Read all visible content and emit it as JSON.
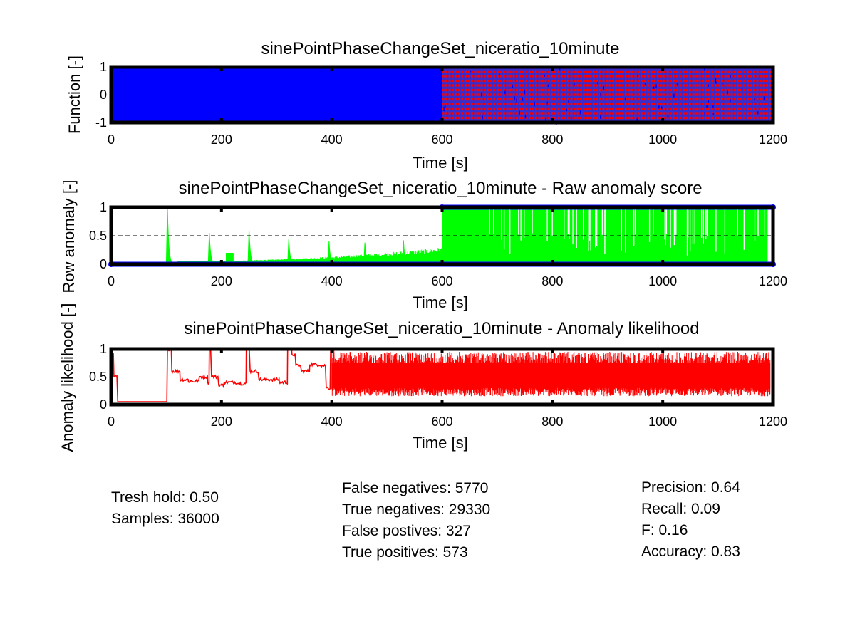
{
  "chart_data": [
    {
      "type": "scatter",
      "title": "sinePointPhaseChangeSet_niceratio_10minute",
      "xlabel": "Time [s]",
      "ylabel": "Function [-]",
      "xlim": [
        0,
        1200
      ],
      "ylim": [
        -1,
        1
      ],
      "xticks": [
        "0",
        "200",
        "400",
        "600",
        "800",
        "1000",
        "1200"
      ],
      "yticks": [
        "-1",
        "0",
        "1"
      ],
      "series": [
        {
          "segment": [
            0,
            600
          ],
          "color": "#0000ff",
          "marker": "dense sine samples, amplitude 1"
        },
        {
          "segment": [
            600,
            1200
          ],
          "color": "#ff0000",
          "marker": "dense point samples with phase change, amplitude 1"
        }
      ]
    },
    {
      "type": "line",
      "title": "sinePointPhaseChangeSet_niceratio_10minute - Raw anomaly score",
      "xlabel": "Time [s]",
      "ylabel": "Row anomaly [-]",
      "xlim": [
        0,
        1200
      ],
      "ylim": [
        0,
        1
      ],
      "xticks": [
        "0",
        "200",
        "400",
        "600",
        "800",
        "1000",
        "1200"
      ],
      "yticks": [
        "0",
        "0.5",
        "1"
      ],
      "threshold": 0.5,
      "line_color": "#00ff00",
      "spikes": [
        {
          "x": 102,
          "y": 1.0
        },
        {
          "x": 178,
          "y": 0.55
        },
        {
          "x": 250,
          "y": 0.6
        },
        {
          "x": 322,
          "y": 0.45
        },
        {
          "x": 395,
          "y": 0.4
        },
        {
          "x": 460,
          "y": 0.38
        },
        {
          "x": 530,
          "y": 0.42
        }
      ],
      "plateaus": [
        {
          "x0": 208,
          "x1": 222,
          "y": 0.2
        }
      ],
      "baseline_ramp": {
        "x0": 120,
        "x1": 600,
        "y0": 0.05,
        "y1": 0.3
      },
      "dense_region": {
        "x0": 600,
        "x1": 1190,
        "low": 0.0,
        "high": 1.0,
        "base": 0.95
      }
    },
    {
      "type": "line",
      "title": "sinePointPhaseChangeSet_niceratio_10minute - Anomaly likelihood",
      "xlabel": "Time [s]",
      "ylabel": "Anomaly likelihood [-]",
      "xlim": [
        0,
        1200
      ],
      "ylim": [
        0,
        1
      ],
      "xticks": [
        "0",
        "200",
        "400",
        "600",
        "800",
        "1000",
        "1200"
      ],
      "yticks": [
        "0",
        "0.5",
        "1"
      ],
      "line_color": "#ff0000",
      "steps": [
        [
          0,
          0.9
        ],
        [
          5,
          0.5
        ],
        [
          12,
          0.05
        ],
        [
          100,
          0.05
        ],
        [
          102,
          1.0
        ],
        [
          110,
          0.6
        ],
        [
          125,
          0.45
        ],
        [
          140,
          0.42
        ],
        [
          160,
          0.5
        ],
        [
          175,
          0.4
        ],
        [
          178,
          1.0
        ],
        [
          182,
          0.5
        ],
        [
          195,
          0.35
        ],
        [
          205,
          0.4
        ],
        [
          230,
          0.38
        ],
        [
          245,
          1.0
        ],
        [
          252,
          0.6
        ],
        [
          268,
          0.45
        ],
        [
          290,
          0.45
        ],
        [
          305,
          0.4
        ],
        [
          320,
          1.0
        ],
        [
          328,
          0.9
        ],
        [
          335,
          0.7
        ],
        [
          345,
          0.6
        ],
        [
          360,
          0.72
        ],
        [
          380,
          0.7
        ],
        [
          390,
          0.3
        ],
        [
          398,
          1.0
        ],
        [
          405,
          0.55
        ]
      ],
      "dense_region": {
        "x0": 400,
        "x1": 1195,
        "low": 0.15,
        "high": 0.95
      }
    }
  ],
  "stats": {
    "col1": [
      "Tresh hold: 0.50",
      "Samples: 36000"
    ],
    "col2": [
      "False negatives: 5770",
      "True negatives: 29330",
      "False postives: 327",
      "True positives: 573"
    ],
    "col3": [
      "Precision: 0.64",
      "Recall: 0.09",
      "F: 0.16",
      "Accuracy: 0.83"
    ]
  }
}
